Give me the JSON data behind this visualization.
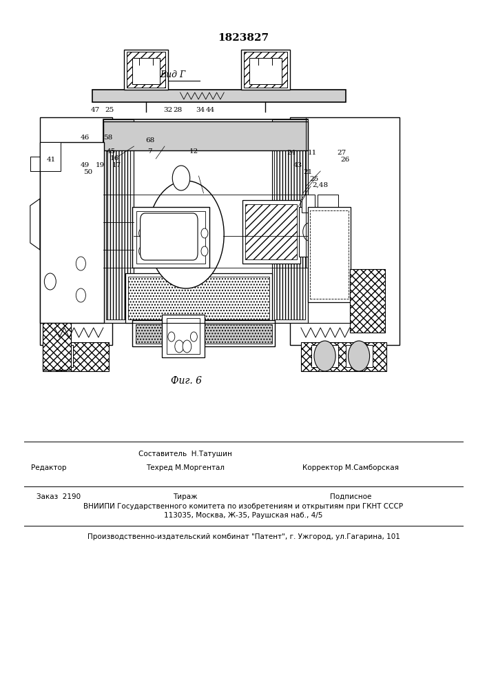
{
  "patent_number": "1823827",
  "figure_label": "Фиг. 6",
  "view_label": "Вид Г",
  "background_color": "#ffffff",
  "text_color": "#000000",
  "footer_line1_col1": "Редактор",
  "footer_line1_col2": "Составитель  Н.Татушин",
  "footer_line2_col2": "Техред М.Моргентал",
  "footer_line2_col3": "Корректор М.Самборская",
  "footer_order": "Заказ  2190",
  "footer_tirazh": "Тираж",
  "footer_podpisnoe": "Подписное",
  "footer_vniipii": "ВНИИПИ Государственного комитета по изобретениям и открытиям при ГКНТ СССР",
  "footer_address": "113035, Москва, Ж-35, Раушская наб., 4/5",
  "footer_publisher": "Производственно-издательский комбинат \"Патент\", г. Ужгород, ул.Гагарина, 101"
}
